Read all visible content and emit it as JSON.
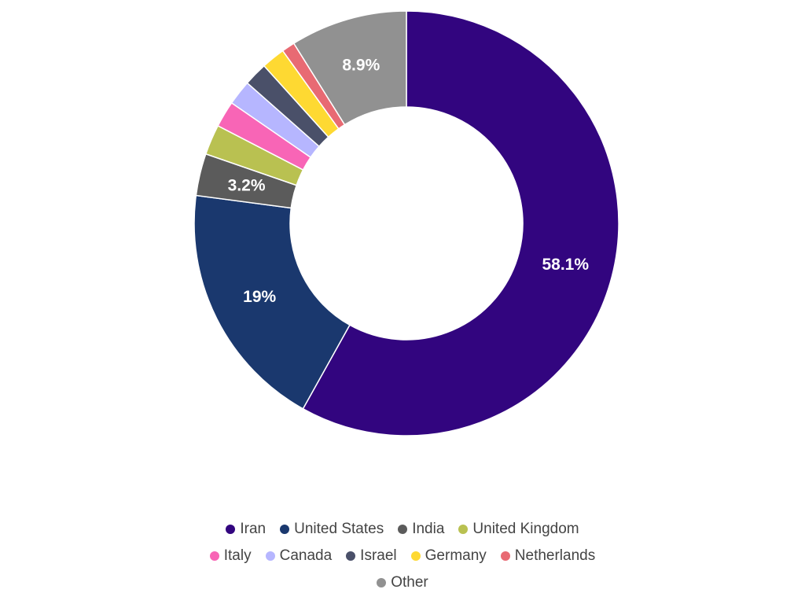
{
  "chart_data": {
    "type": "pie",
    "donut": true,
    "legend_position": "bottom",
    "categories": [
      "Iran",
      "United States",
      "India",
      "United Kingdom",
      "Italy",
      "Canada",
      "Israel",
      "Germany",
      "Netherlands",
      "Other"
    ],
    "values": [
      58.1,
      19,
      3.2,
      2.3,
      2.0,
      1.9,
      1.8,
      1.8,
      1.0,
      8.9
    ],
    "colors": [
      "#32057f",
      "#1a386e",
      "#5b5b5b",
      "#b9c151",
      "#f865b6",
      "#b6b6ff",
      "#4a5069",
      "#fed932",
      "#e86a73",
      "#919191"
    ],
    "data_labels": [
      "58.1%",
      "19%",
      "3.2%",
      "",
      "",
      "",
      "",
      "",
      "",
      "8.9%"
    ]
  }
}
